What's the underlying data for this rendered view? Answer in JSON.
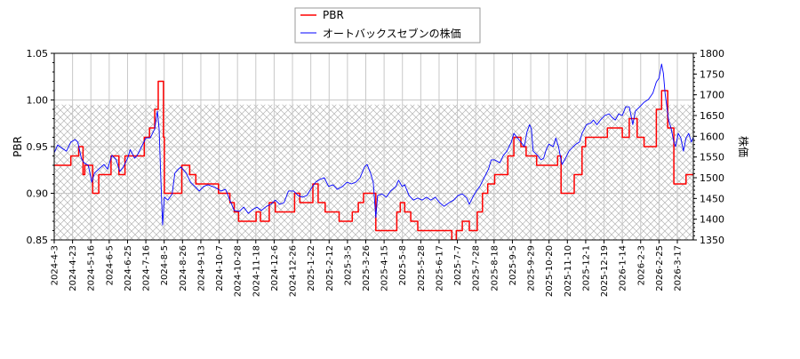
{
  "chart_data": {
    "type": "line",
    "title": "",
    "xlabel": "",
    "ylabel": "PBR",
    "ylabel_right": "株価",
    "ylim": [
      0.85,
      1.05
    ],
    "ylim_right": [
      1350,
      1800
    ],
    "yticks": [
      "0.85",
      "0.90",
      "0.95",
      "1.00",
      "1.05"
    ],
    "yticks_right": [
      "1350",
      "1400",
      "1450",
      "1500",
      "1550",
      "1600",
      "1650",
      "1700",
      "1750",
      "1800"
    ],
    "xticks": [
      "2024-4-3",
      "2024-4-23",
      "2024-5-16",
      "2024-6-5",
      "2024-6-25",
      "2024-7-16",
      "2024-8-5",
      "2024-8-26",
      "2024-9-13",
      "2024-10-7",
      "2024-10-28",
      "2024-11-18",
      "2024-12-6",
      "2024-12-26",
      "2025-1-22",
      "2025-2-12",
      "2025-3-5",
      "2025-3-26",
      "2025-4-15",
      "2025-5-8",
      "2025-5-28",
      "2025-6-17",
      "2025-7-7",
      "2025-7-28",
      "2025-8-18",
      "2025-9-5",
      "2025-9-29",
      "2025-10-20",
      "2025-11-10",
      "2025-12-1",
      "2025-12-19",
      "2026-1-14",
      "2026-2-3",
      "2026-2-25",
      "2026-3-17"
    ],
    "grid": true,
    "legend_position": "top-center",
    "series": [
      {
        "name": "PBR",
        "color": "#ff0000",
        "axis": "left",
        "step": true,
        "points": [
          [
            "2024-04-03",
            0.93
          ],
          [
            "2024-04-22",
            0.94
          ],
          [
            "2024-05-01",
            0.95
          ],
          [
            "2024-05-06",
            0.92
          ],
          [
            "2024-05-08",
            0.93
          ],
          [
            "2024-05-17",
            0.9
          ],
          [
            "2024-05-24",
            0.92
          ],
          [
            "2024-06-07",
            0.94
          ],
          [
            "2024-06-16",
            0.92
          ],
          [
            "2024-06-23",
            0.94
          ],
          [
            "2024-07-15",
            0.96
          ],
          [
            "2024-07-21",
            0.97
          ],
          [
            "2024-07-27",
            0.99
          ],
          [
            "2024-07-31",
            1.02
          ],
          [
            "2024-08-06",
            0.96
          ],
          [
            "2024-08-07",
            0.9
          ],
          [
            "2024-08-27",
            0.93
          ],
          [
            "2024-09-05",
            0.92
          ],
          [
            "2024-09-12",
            0.91
          ],
          [
            "2024-10-08",
            0.9
          ],
          [
            "2024-10-21",
            0.89
          ],
          [
            "2024-10-26",
            0.88
          ],
          [
            "2024-10-31",
            0.87
          ],
          [
            "2024-11-20",
            0.88
          ],
          [
            "2024-11-25",
            0.87
          ],
          [
            "2024-12-05",
            0.89
          ],
          [
            "2024-12-12",
            0.88
          ],
          [
            "2025-01-03",
            0.9
          ],
          [
            "2025-01-09",
            0.89
          ],
          [
            "2025-01-24",
            0.91
          ],
          [
            "2025-01-30",
            0.89
          ],
          [
            "2025-02-07",
            0.88
          ],
          [
            "2025-02-23",
            0.87
          ],
          [
            "2025-03-10",
            0.88
          ],
          [
            "2025-03-17",
            0.89
          ],
          [
            "2025-03-23",
            0.9
          ],
          [
            "2025-04-06",
            0.86
          ],
          [
            "2025-04-30",
            0.88
          ],
          [
            "2025-05-04",
            0.89
          ],
          [
            "2025-05-09",
            0.88
          ],
          [
            "2025-05-16",
            0.87
          ],
          [
            "2025-05-24",
            0.86
          ],
          [
            "2025-07-02",
            0.85
          ],
          [
            "2025-07-07",
            0.86
          ],
          [
            "2025-07-14",
            0.87
          ],
          [
            "2025-07-22",
            0.86
          ],
          [
            "2025-07-31",
            0.88
          ],
          [
            "2025-08-06",
            0.9
          ],
          [
            "2025-08-12",
            0.91
          ],
          [
            "2025-08-20",
            0.92
          ],
          [
            "2025-09-04",
            0.94
          ],
          [
            "2025-09-11",
            0.96
          ],
          [
            "2025-09-19",
            0.95
          ],
          [
            "2025-09-25",
            0.94
          ],
          [
            "2025-10-07",
            0.93
          ],
          [
            "2025-10-31",
            0.94
          ],
          [
            "2025-11-04",
            0.9
          ],
          [
            "2025-11-19",
            0.92
          ],
          [
            "2025-11-28",
            0.95
          ],
          [
            "2025-12-02",
            0.96
          ],
          [
            "2025-12-27",
            0.97
          ],
          [
            "2026-01-13",
            0.96
          ],
          [
            "2026-01-21",
            0.98
          ],
          [
            "2026-01-30",
            0.96
          ],
          [
            "2026-02-07",
            0.95
          ],
          [
            "2026-02-21",
            0.99
          ],
          [
            "2026-02-27",
            1.01
          ],
          [
            "2026-03-06",
            0.97
          ],
          [
            "2026-03-13",
            0.91
          ],
          [
            "2026-03-27",
            0.92
          ],
          [
            "2026-04-04",
            0.92
          ]
        ]
      },
      {
        "name": "オートバックスセブンの株価",
        "color": "#0000ff",
        "axis": "right",
        "step": false,
        "points": [
          [
            "2024-04-03",
            1560
          ],
          [
            "2024-04-07",
            1579
          ],
          [
            "2024-04-12",
            1571
          ],
          [
            "2024-04-17",
            1564
          ],
          [
            "2024-04-22",
            1586
          ],
          [
            "2024-04-27",
            1592
          ],
          [
            "2024-04-30",
            1586
          ],
          [
            "2024-05-04",
            1547
          ],
          [
            "2024-05-07",
            1536
          ],
          [
            "2024-05-12",
            1530
          ],
          [
            "2024-05-16",
            1489
          ],
          [
            "2024-05-19",
            1511
          ],
          [
            "2024-05-24",
            1521
          ],
          [
            "2024-05-30",
            1532
          ],
          [
            "2024-06-03",
            1521
          ],
          [
            "2024-06-08",
            1554
          ],
          [
            "2024-06-13",
            1543
          ],
          [
            "2024-06-17",
            1515
          ],
          [
            "2024-06-21",
            1526
          ],
          [
            "2024-06-26",
            1547
          ],
          [
            "2024-06-29",
            1568
          ],
          [
            "2024-07-04",
            1547
          ],
          [
            "2024-07-07",
            1554
          ],
          [
            "2024-07-12",
            1575
          ],
          [
            "2024-07-17",
            1596
          ],
          [
            "2024-07-22",
            1596
          ],
          [
            "2024-07-27",
            1618
          ],
          [
            "2024-07-30",
            1661
          ],
          [
            "2024-08-01",
            1618
          ],
          [
            "2024-08-03",
            1500
          ],
          [
            "2024-08-05",
            1386
          ],
          [
            "2024-08-07",
            1453
          ],
          [
            "2024-08-11",
            1446
          ],
          [
            "2024-08-16",
            1461
          ],
          [
            "2024-08-19",
            1511
          ],
          [
            "2024-08-23",
            1521
          ],
          [
            "2024-08-26",
            1526
          ],
          [
            "2024-09-01",
            1511
          ],
          [
            "2024-09-06",
            1489
          ],
          [
            "2024-09-11",
            1479
          ],
          [
            "2024-09-16",
            1468
          ],
          [
            "2024-09-21",
            1479
          ],
          [
            "2024-09-26",
            1483
          ],
          [
            "2024-10-01",
            1479
          ],
          [
            "2024-10-06",
            1474
          ],
          [
            "2024-10-11",
            1468
          ],
          [
            "2024-10-16",
            1472
          ],
          [
            "2024-10-21",
            1446
          ],
          [
            "2024-10-26",
            1421
          ],
          [
            "2024-11-01",
            1419
          ],
          [
            "2024-11-06",
            1429
          ],
          [
            "2024-11-11",
            1414
          ],
          [
            "2024-11-16",
            1423
          ],
          [
            "2024-11-21",
            1429
          ],
          [
            "2024-11-26",
            1421
          ],
          [
            "2024-12-02",
            1431
          ],
          [
            "2024-12-07",
            1436
          ],
          [
            "2024-12-12",
            1446
          ],
          [
            "2024-12-17",
            1436
          ],
          [
            "2024-12-22",
            1440
          ],
          [
            "2024-12-27",
            1468
          ],
          [
            "2025-01-02",
            1468
          ],
          [
            "2025-01-07",
            1457
          ],
          [
            "2025-01-12",
            1453
          ],
          [
            "2025-01-17",
            1457
          ],
          [
            "2025-01-22",
            1474
          ],
          [
            "2025-01-27",
            1489
          ],
          [
            "2025-02-01",
            1496
          ],
          [
            "2025-02-06",
            1500
          ],
          [
            "2025-02-11",
            1479
          ],
          [
            "2025-02-16",
            1483
          ],
          [
            "2025-02-21",
            1472
          ],
          [
            "2025-02-27",
            1479
          ],
          [
            "2025-03-04",
            1489
          ],
          [
            "2025-03-09",
            1485
          ],
          [
            "2025-03-14",
            1489
          ],
          [
            "2025-03-19",
            1500
          ],
          [
            "2025-03-24",
            1526
          ],
          [
            "2025-03-27",
            1532
          ],
          [
            "2025-03-31",
            1511
          ],
          [
            "2025-04-03",
            1489
          ],
          [
            "2025-04-06",
            1404
          ],
          [
            "2025-04-08",
            1457
          ],
          [
            "2025-04-13",
            1461
          ],
          [
            "2025-04-18",
            1453
          ],
          [
            "2025-04-23",
            1468
          ],
          [
            "2025-04-29",
            1479
          ],
          [
            "2025-05-02",
            1494
          ],
          [
            "2025-05-06",
            1479
          ],
          [
            "2025-05-09",
            1483
          ],
          [
            "2025-05-14",
            1457
          ],
          [
            "2025-05-19",
            1446
          ],
          [
            "2025-05-24",
            1451
          ],
          [
            "2025-05-29",
            1446
          ],
          [
            "2025-06-03",
            1453
          ],
          [
            "2025-06-08",
            1446
          ],
          [
            "2025-06-13",
            1453
          ],
          [
            "2025-06-18",
            1440
          ],
          [
            "2025-06-23",
            1431
          ],
          [
            "2025-06-29",
            1440
          ],
          [
            "2025-07-04",
            1446
          ],
          [
            "2025-07-09",
            1457
          ],
          [
            "2025-07-14",
            1461
          ],
          [
            "2025-07-19",
            1451
          ],
          [
            "2025-07-22",
            1436
          ],
          [
            "2025-07-26",
            1453
          ],
          [
            "2025-07-30",
            1468
          ],
          [
            "2025-08-03",
            1479
          ],
          [
            "2025-08-08",
            1500
          ],
          [
            "2025-08-13",
            1521
          ],
          [
            "2025-08-16",
            1543
          ],
          [
            "2025-08-20",
            1543
          ],
          [
            "2025-08-26",
            1536
          ],
          [
            "2025-08-30",
            1554
          ],
          [
            "2025-09-03",
            1564
          ],
          [
            "2025-09-08",
            1586
          ],
          [
            "2025-09-11",
            1607
          ],
          [
            "2025-09-15",
            1596
          ],
          [
            "2025-09-19",
            1586
          ],
          [
            "2025-09-23",
            1575
          ],
          [
            "2025-09-26",
            1611
          ],
          [
            "2025-09-29",
            1628
          ],
          [
            "2025-10-01",
            1618
          ],
          [
            "2025-10-03",
            1564
          ],
          [
            "2025-10-08",
            1554
          ],
          [
            "2025-10-12",
            1543
          ],
          [
            "2025-10-15",
            1547
          ],
          [
            "2025-10-18",
            1568
          ],
          [
            "2025-10-21",
            1581
          ],
          [
            "2025-10-26",
            1575
          ],
          [
            "2025-10-29",
            1596
          ],
          [
            "2025-11-01",
            1575
          ],
          [
            "2025-11-05",
            1532
          ],
          [
            "2025-11-09",
            1547
          ],
          [
            "2025-11-13",
            1564
          ],
          [
            "2025-11-18",
            1575
          ],
          [
            "2025-11-21",
            1581
          ],
          [
            "2025-11-25",
            1586
          ],
          [
            "2025-11-28",
            1607
          ],
          [
            "2025-12-03",
            1628
          ],
          [
            "2025-12-08",
            1632
          ],
          [
            "2025-12-11",
            1639
          ],
          [
            "2025-12-15",
            1628
          ],
          [
            "2025-12-19",
            1639
          ],
          [
            "2025-12-24",
            1650
          ],
          [
            "2025-12-29",
            1654
          ],
          [
            "2026-01-01",
            1646
          ],
          [
            "2026-01-05",
            1639
          ],
          [
            "2026-01-09",
            1654
          ],
          [
            "2026-01-13",
            1650
          ],
          [
            "2026-01-17",
            1671
          ],
          [
            "2026-01-21",
            1671
          ],
          [
            "2026-01-23",
            1650
          ],
          [
            "2026-01-25",
            1628
          ],
          [
            "2026-01-28",
            1661
          ],
          [
            "2026-02-02",
            1671
          ],
          [
            "2026-02-07",
            1682
          ],
          [
            "2026-02-12",
            1689
          ],
          [
            "2026-02-17",
            1704
          ],
          [
            "2026-02-21",
            1731
          ],
          [
            "2026-02-24",
            1740
          ],
          [
            "2026-02-27",
            1774
          ],
          [
            "2026-03-01",
            1752
          ],
          [
            "2026-03-03",
            1704
          ],
          [
            "2026-03-05",
            1671
          ],
          [
            "2026-03-07",
            1639
          ],
          [
            "2026-03-10",
            1618
          ],
          [
            "2026-03-13",
            1586
          ],
          [
            "2026-03-15",
            1575
          ],
          [
            "2026-03-18",
            1607
          ],
          [
            "2026-03-21",
            1596
          ],
          [
            "2026-03-24",
            1564
          ],
          [
            "2026-03-27",
            1596
          ],
          [
            "2026-03-30",
            1607
          ],
          [
            "2026-04-02",
            1586
          ],
          [
            "2026-04-04",
            1596
          ]
        ]
      }
    ]
  }
}
